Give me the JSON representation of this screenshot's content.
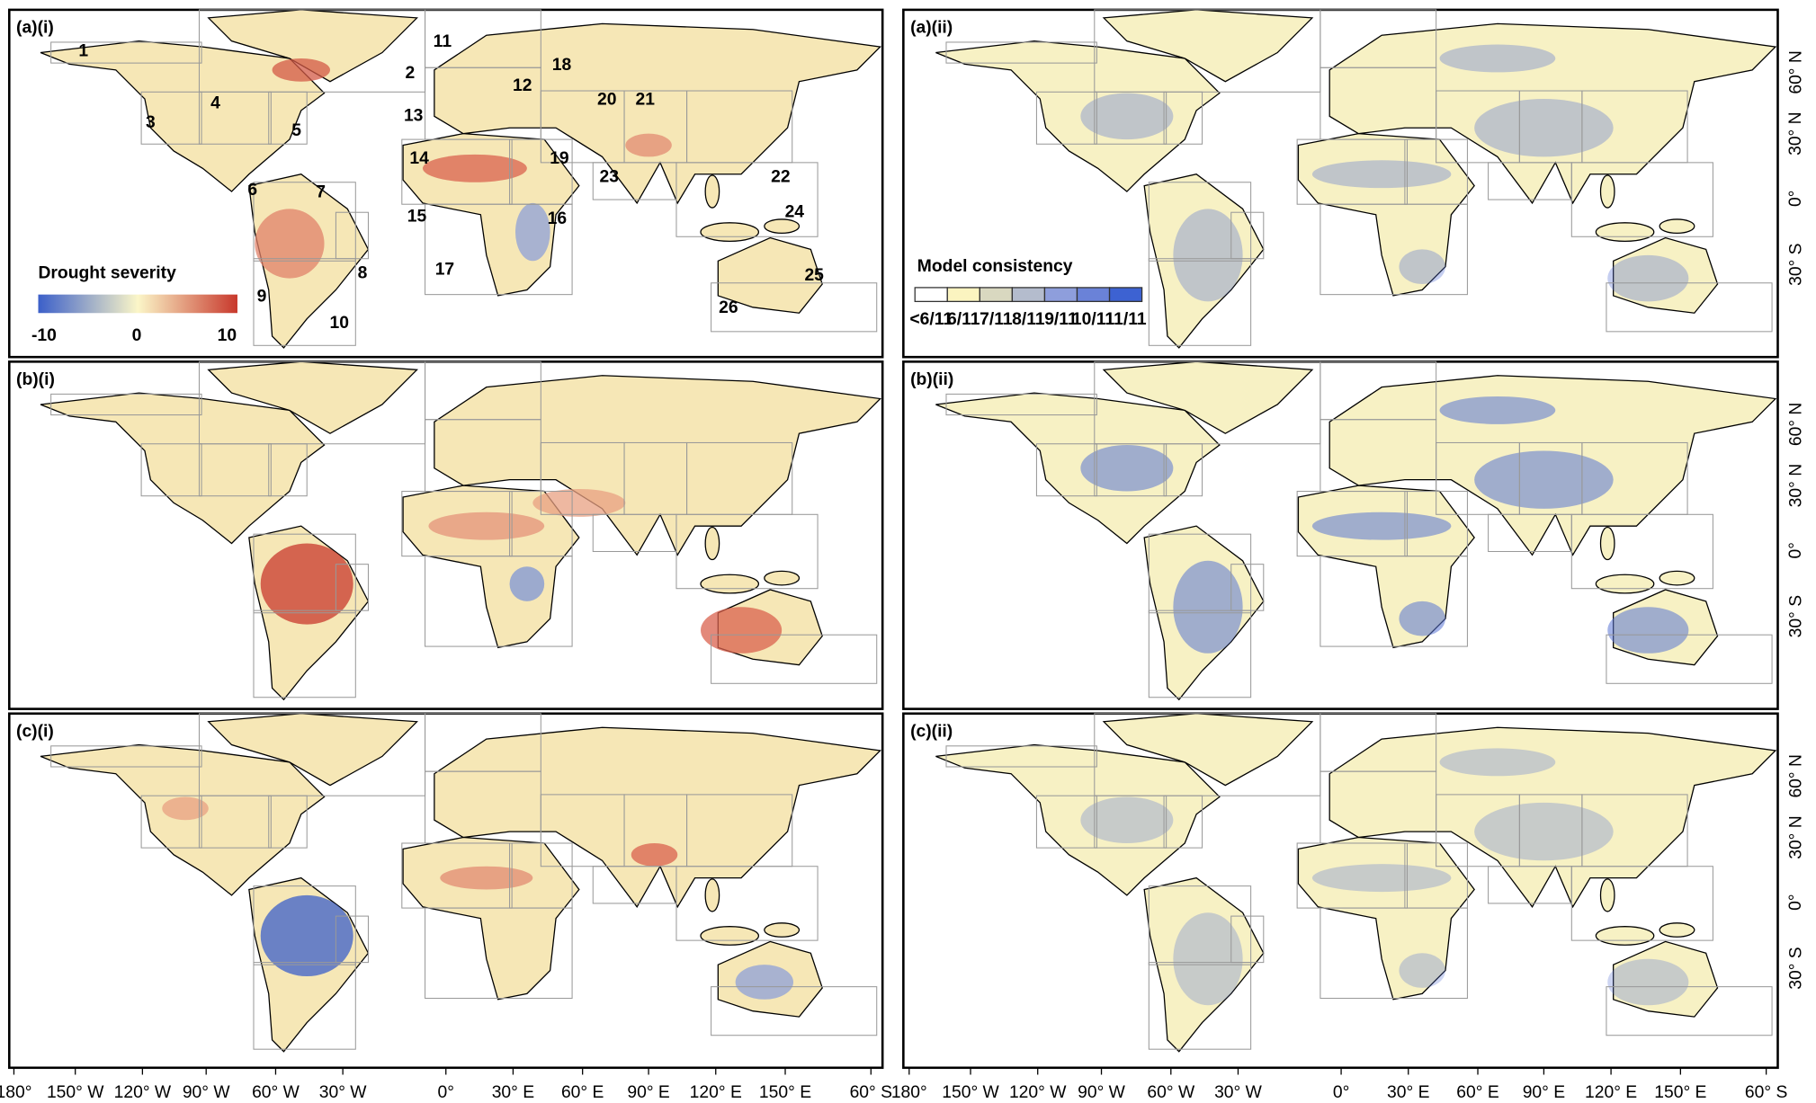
{
  "panels": [
    "(a)(i)",
    "(a)(ii)",
    "(b)(i)",
    "(b)(ii)",
    "(c)(i)",
    "(c)(ii)"
  ],
  "regions": [
    "1",
    "2",
    "3",
    "4",
    "5",
    "6",
    "7",
    "8",
    "9",
    "10",
    "11",
    "12",
    "13",
    "14",
    "15",
    "16",
    "17",
    "18",
    "19",
    "20",
    "21",
    "22",
    "23",
    "24",
    "25",
    "26"
  ],
  "drought_legend": {
    "title": "Drought severity",
    "ticks": [
      "-10",
      "0",
      "10"
    ]
  },
  "consistency_legend": {
    "title": "Model consistency",
    "classes": [
      "<6/11",
      "6/11",
      "7/11",
      "8/11",
      "9/11",
      "10/11",
      "11/11"
    ]
  },
  "x_axis_left": [
    "180°",
    "150° W",
    "120° W",
    "90° W",
    "60° W",
    "30° W",
    "0°",
    "30° E",
    "60° E",
    "90° E",
    "120° E",
    "150° E",
    "60° S"
  ],
  "x_axis_right": [
    "180°",
    "150° W",
    "120° W",
    "90° W",
    "60° W",
    "30° W",
    "0°",
    "30° E",
    "60° E",
    "90° E",
    "120° E",
    "150° E",
    "60° S"
  ],
  "y_axis": [
    "60° N",
    "30° N",
    "0°",
    "30° S"
  ]
}
